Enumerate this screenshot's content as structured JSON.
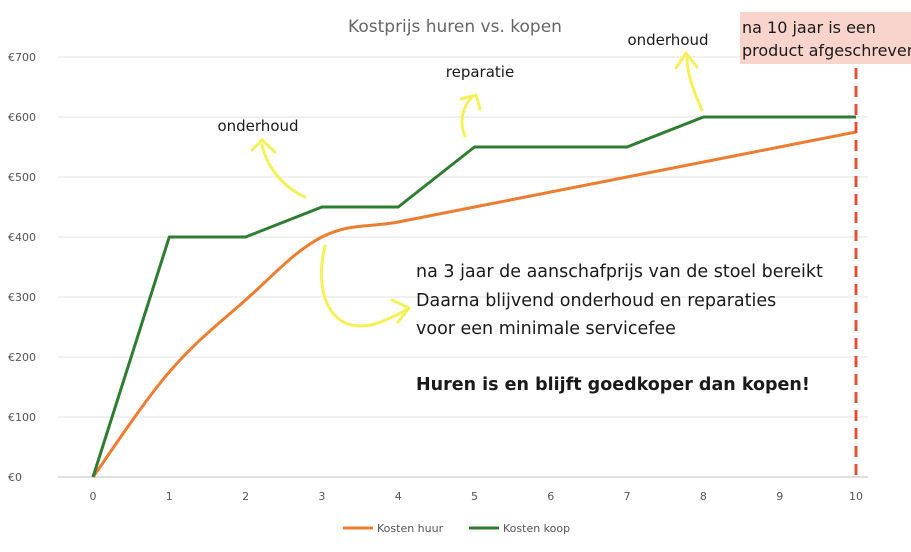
{
  "chart_data": {
    "type": "line",
    "title": "Kostprijs huren vs. kopen",
    "xlabel": "",
    "ylabel": "",
    "x": [
      0,
      1,
      2,
      3,
      4,
      5,
      6,
      7,
      8,
      9,
      10
    ],
    "x_ticks": [
      "0",
      "1",
      "2",
      "3",
      "4",
      "5",
      "6",
      "7",
      "8",
      "9",
      "10"
    ],
    "xlim": [
      0,
      10
    ],
    "ylim": [
      0,
      700
    ],
    "y_ticks": [
      0,
      100,
      200,
      300,
      400,
      500,
      600,
      700
    ],
    "y_tick_labels": [
      "€0",
      "€100",
      "€200",
      "€300",
      "€400",
      "€500",
      "€600",
      "€700"
    ],
    "grid": "horizontal",
    "legend_position": "bottom",
    "series": [
      {
        "name": "Kosten huur",
        "color": "#ed7d31",
        "values": [
          0,
          175,
          295,
          400,
          425,
          450,
          475,
          500,
          525,
          550,
          575
        ]
      },
      {
        "name": "Kosten koop",
        "color": "#2e7d32",
        "values": [
          0,
          400,
          400,
          450,
          450,
          550,
          550,
          550,
          600,
          600,
          600
        ]
      }
    ]
  },
  "annotations": {
    "labels": [
      "onderhoud",
      "reparatie",
      "onderhoud"
    ],
    "note_lines": [
      "na 3 jaar de aanschafprijs van de stoel bereikt",
      "Daarna blijvend onderhoud en reparaties",
      "voor een minimale servicefee"
    ],
    "conclusion": "Huren is en blijft goedkoper dan kopen!",
    "corner_lines": [
      "na 10 jaar is een",
      "product afgeschreven"
    ],
    "corner_fill": "#f9d4cc",
    "arrow_color": "#f5f05a",
    "marker_color": "#e0533a"
  }
}
